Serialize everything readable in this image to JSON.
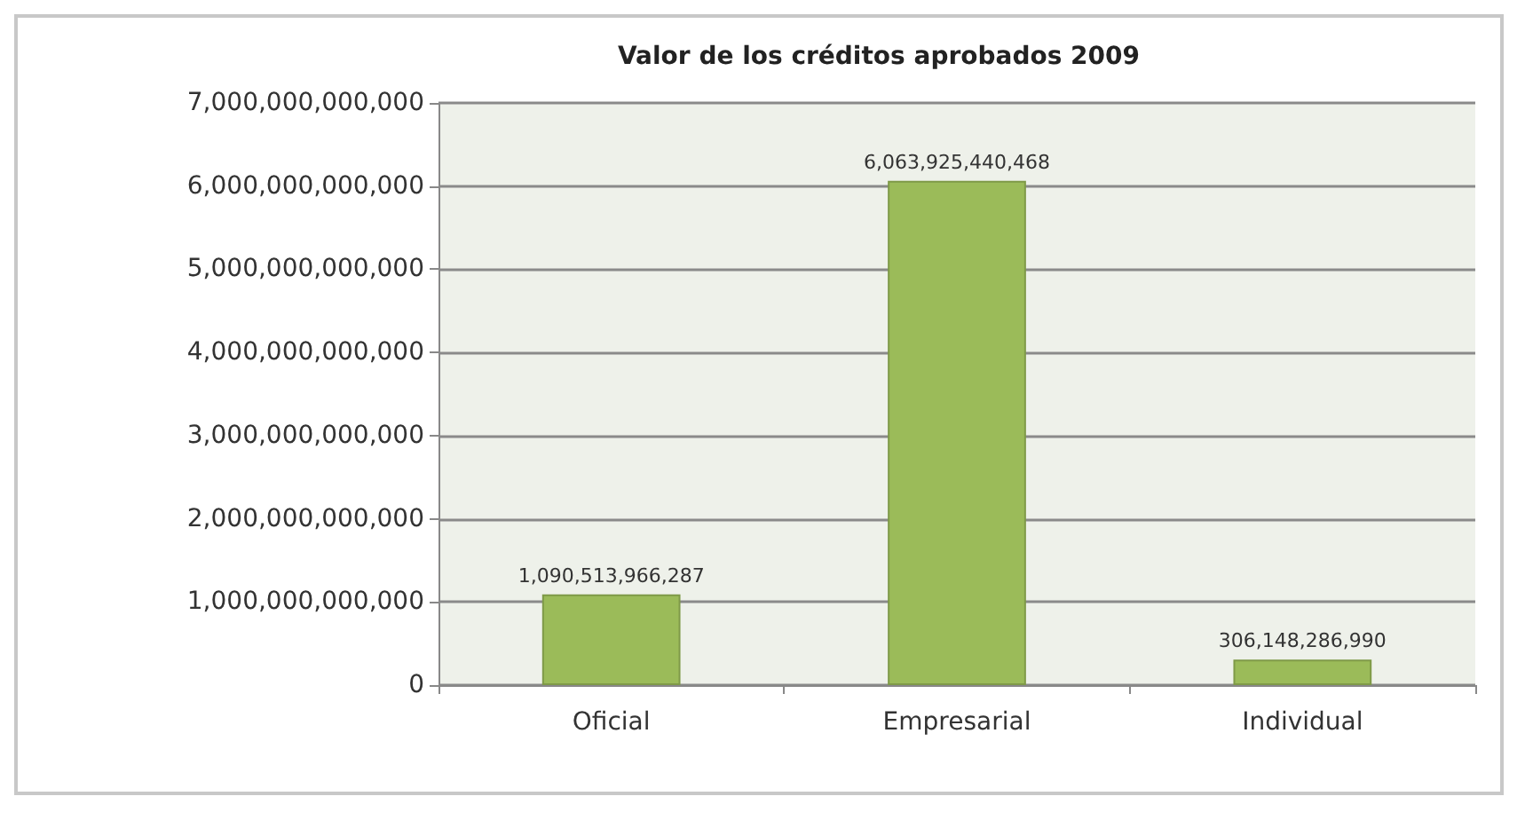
{
  "chart_data": {
    "type": "bar",
    "title": "Valor de los créditos aprobados 2009",
    "categories": [
      "Oficial",
      "Empresarial",
      "Individual"
    ],
    "values": [
      1090513966287,
      6063925440468,
      306148286990
    ],
    "color": "#9bbb59",
    "ylim": [
      0,
      7000000000000
    ],
    "yticks": [
      {
        "value": 0,
        "label": "0"
      },
      {
        "value": 1000000000000,
        "label": "1,000,000,000,000"
      },
      {
        "value": 2000000000000,
        "label": "2,000,000,000,000"
      },
      {
        "value": 3000000000000,
        "label": "3,000,000,000,000"
      },
      {
        "value": 4000000000000,
        "label": "4,000,000,000,000"
      },
      {
        "value": 5000000000000,
        "label": "5,000,000,000,000"
      },
      {
        "value": 6000000000000,
        "label": "6,000,000,000,000"
      },
      {
        "value": 7000000000000,
        "label": "7,000,000,000,000"
      }
    ],
    "value_labels": [
      "1,090,513,966,287",
      "6,063,925,440,468",
      "306,148,286,990"
    ],
    "grid": "y"
  }
}
